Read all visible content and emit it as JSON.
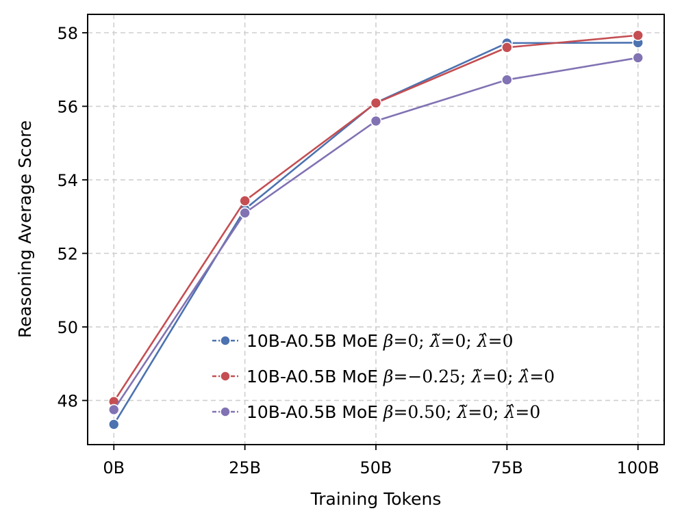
{
  "chart_data": {
    "type": "line",
    "title": "",
    "xlabel": "Training Tokens",
    "ylabel": "Reasoning Average Score",
    "categories": [
      "0B",
      "25B",
      "50B",
      "75B",
      "100B"
    ],
    "x_values": [
      0,
      25,
      50,
      75,
      100
    ],
    "xlim": [
      -5,
      105
    ],
    "ylim": [
      46.8,
      58.5
    ],
    "yticks": [
      48,
      50,
      52,
      54,
      56,
      58
    ],
    "grid": true,
    "grid_style": "dashed",
    "legend_position": "lower-right",
    "series": [
      {
        "name": "10B-A0.5B MoE β = 0; λ̃ = 0; λ̂ = 0",
        "name_parts": {
          "prefix": "10B-A0.5B MoE ",
          "beta": "0",
          "ltilde": "0",
          "lhat": "0"
        },
        "color": "#4c72b0",
        "values": [
          47.35,
          53.2,
          56.1,
          57.72,
          57.73
        ]
      },
      {
        "name": "10B-A0.5B MoE β = −0.25; λ̃ = 0; λ̂ = 0",
        "name_parts": {
          "prefix": "10B-A0.5B MoE ",
          "beta": "−0.25",
          "ltilde": "0",
          "lhat": "0"
        },
        "color": "#c44e52",
        "values": [
          47.97,
          53.43,
          56.09,
          57.6,
          57.93
        ]
      },
      {
        "name": "10B-A0.5B MoE β = 0.50; λ̃ = 0; λ̂ = 0",
        "name_parts": {
          "prefix": "10B-A0.5B MoE ",
          "beta": "0.50",
          "ltilde": "0",
          "lhat": "0"
        },
        "color": "#8172b3",
        "values": [
          47.75,
          53.1,
          55.6,
          56.72,
          57.32
        ]
      }
    ]
  }
}
